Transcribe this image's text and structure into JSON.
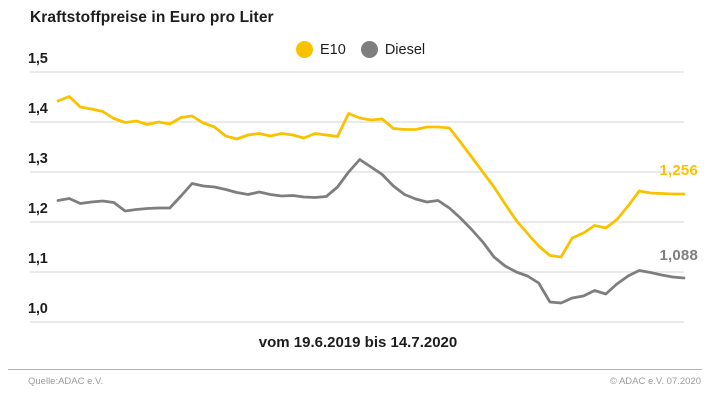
{
  "title": "Kraftstoffpreise in Euro pro Liter",
  "legend": [
    {
      "label": "E10",
      "color": "#f9c200"
    },
    {
      "label": "Diesel",
      "color": "#7e7e7e"
    }
  ],
  "caption": "vom 19.6.2019 bis 14.7.2020",
  "footer": {
    "source": "Quelle:ADAC e.V.",
    "copyright": "© ADAC e.V. 07.2020"
  },
  "colors": {
    "e10_line": "#f9c200",
    "diesel_line": "#7e7e7e",
    "gridline": "#dedede",
    "text": "#1d1d1b",
    "footer_text": "#9b9b9b"
  },
  "chart_data": {
    "type": "line",
    "title": "Kraftstoffpreise in Euro pro Liter",
    "ylabel": "Euro pro Liter",
    "x_range_label": "vom 19.6.2019 bis 14.7.2020",
    "ylim": [
      1.0,
      1.5
    ],
    "yticks": [
      1.5,
      1.4,
      1.3,
      1.2,
      1.1,
      1.0
    ],
    "ytick_labels": [
      "1,5",
      "1,4",
      "1,3",
      "1,2",
      "1,1",
      "1,0"
    ],
    "grid": true,
    "legend_position": "top-center",
    "x_unit": "weekly from 19.6.2019 to 14.7.2020",
    "series": [
      {
        "name": "E10",
        "color": "#f9c200",
        "end_label": "1,256",
        "end_value": 1.256,
        "values": [
          1.442,
          1.451,
          1.43,
          1.426,
          1.421,
          1.407,
          1.399,
          1.402,
          1.395,
          1.4,
          1.396,
          1.409,
          1.412,
          1.398,
          1.39,
          1.372,
          1.366,
          1.374,
          1.377,
          1.372,
          1.377,
          1.374,
          1.368,
          1.377,
          1.374,
          1.371,
          1.417,
          1.408,
          1.404,
          1.406,
          1.387,
          1.385,
          1.385,
          1.39,
          1.39,
          1.388,
          1.36,
          1.33,
          1.3,
          1.27,
          1.236,
          1.203,
          1.177,
          1.152,
          1.133,
          1.13,
          1.168,
          1.178,
          1.193,
          1.188,
          1.205,
          1.232,
          1.262,
          1.258,
          1.257,
          1.256,
          1.256
        ]
      },
      {
        "name": "Diesel",
        "color": "#7e7e7e",
        "end_label": "1,088",
        "end_value": 1.088,
        "values": [
          1.243,
          1.247,
          1.237,
          1.24,
          1.242,
          1.239,
          1.222,
          1.225,
          1.227,
          1.228,
          1.228,
          1.252,
          1.277,
          1.272,
          1.27,
          1.265,
          1.259,
          1.255,
          1.26,
          1.255,
          1.252,
          1.253,
          1.25,
          1.249,
          1.251,
          1.27,
          1.3,
          1.325,
          1.31,
          1.295,
          1.272,
          1.255,
          1.246,
          1.24,
          1.243,
          1.228,
          1.208,
          1.185,
          1.16,
          1.13,
          1.112,
          1.1,
          1.092,
          1.078,
          1.04,
          1.038,
          1.048,
          1.052,
          1.063,
          1.056,
          1.076,
          1.092,
          1.103,
          1.099,
          1.094,
          1.09,
          1.088
        ]
      }
    ]
  }
}
